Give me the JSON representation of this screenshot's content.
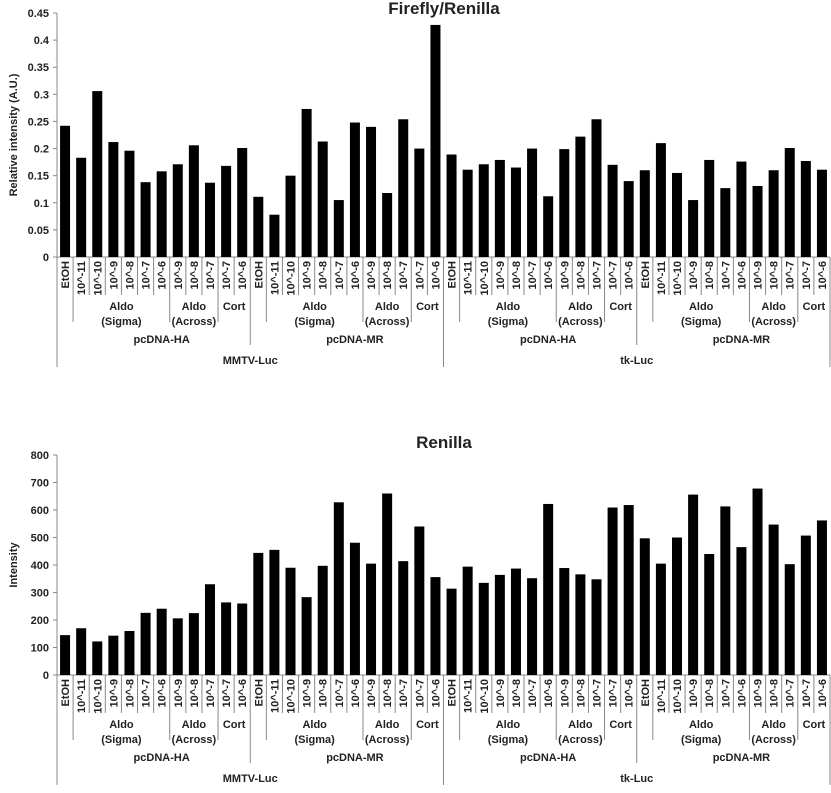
{
  "chart_data": [
    {
      "type": "bar",
      "title": "Firefly/Renilla",
      "ylabel": "Relative intensity (A.U.)",
      "xlabel": "",
      "ylim": [
        0,
        0.45
      ],
      "ystep": 0.05,
      "yticks": [
        "0",
        "0.05",
        "0.1",
        "0.15",
        "0.2",
        "0.25",
        "0.3",
        "0.35",
        "0.4",
        "0.45"
      ],
      "values": [
        0.242,
        0.183,
        0.306,
        0.212,
        0.196,
        0.138,
        0.158,
        0.171,
        0.206,
        0.137,
        0.168,
        0.201,
        0.111,
        0.078,
        0.15,
        0.273,
        0.213,
        0.105,
        0.248,
        0.24,
        0.118,
        0.254,
        0.2,
        0.428,
        0.189,
        0.161,
        0.171,
        0.179,
        0.165,
        0.2,
        0.112,
        0.199,
        0.222,
        0.254,
        0.17,
        0.14,
        0.16,
        0.21,
        0.155,
        0.105,
        0.179,
        0.127,
        0.176,
        0.131,
        0.16,
        0.201,
        0.177,
        0.161
      ]
    },
    {
      "type": "bar",
      "title": "Renilla",
      "ylabel": "Intensity",
      "xlabel": "",
      "ylim": [
        0,
        800
      ],
      "ystep": 100,
      "yticks": [
        "0",
        "100",
        "200",
        "300",
        "400",
        "500",
        "600",
        "700",
        "800"
      ],
      "values": [
        145,
        170,
        122,
        143,
        160,
        226,
        241,
        206,
        225,
        330,
        264,
        260,
        444,
        455,
        390,
        283,
        397,
        628,
        481,
        405,
        660,
        414,
        540,
        356,
        314,
        394,
        335,
        364,
        387,
        352,
        622,
        389,
        366,
        348,
        609,
        618,
        497,
        405,
        500,
        656,
        440,
        613,
        465,
        678,
        547,
        403,
        507,
        562
      ]
    }
  ],
  "categories": {
    "treatments": [
      "EtOH",
      "10^-11",
      "10^-10",
      "10^-9",
      "10^-8",
      "10^-7",
      "10^-6",
      "10^-9",
      "10^-8",
      "10^-7",
      "10^-7",
      "10^-6"
    ],
    "compounds": [
      {
        "line1": "Aldo",
        "line2": "(Sigma)"
      },
      {
        "line1": "Aldo",
        "line2": "(Across)"
      },
      {
        "line1": "Cort",
        "line2": ""
      }
    ],
    "vectors": [
      "pcDNA-HA",
      "pcDNA-MR"
    ],
    "reporters": [
      "MMTV-Luc",
      "tk-Luc"
    ]
  },
  "colors": {
    "bar": "#000000",
    "axis": "#888888",
    "text": "#222222"
  }
}
